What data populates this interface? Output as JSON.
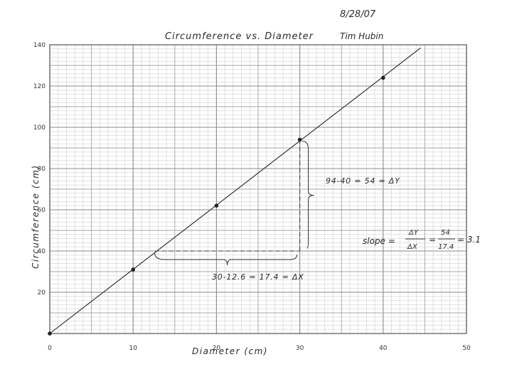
{
  "header": {
    "date": "8/28/07",
    "author": "Tim Hubin"
  },
  "chart_data": {
    "type": "scatter",
    "title": "Circumference vs. Diameter",
    "xlabel": "Diameter (cm)",
    "ylabel": "Circumference (cm)",
    "xlim": [
      0,
      50
    ],
    "ylim": [
      0,
      140
    ],
    "x_ticks": [
      0,
      10,
      20,
      30,
      40,
      50
    ],
    "y_ticks": [
      20,
      40,
      60,
      80,
      100,
      120,
      140
    ],
    "grid": true,
    "series": [
      {
        "x": [
          0,
          10,
          20,
          30,
          40
        ],
        "y": [
          0,
          31,
          62,
          94,
          124
        ]
      }
    ],
    "fit_line": {
      "x": [
        0,
        44.5
      ],
      "y": [
        0,
        138.5
      ]
    },
    "slope_triangle": {
      "x1": 12.6,
      "y1": 40,
      "x2": 30,
      "y2": 94
    },
    "annotations": {
      "delta_y": "94-40 = 54 = ΔY",
      "delta_x": "30-12.6 = 17.4 = ΔX",
      "slope_label": "slope =",
      "slope_frac1_num": "ΔY",
      "slope_frac1_den": "ΔX",
      "slope_eq": "=",
      "slope_frac2_num": "54",
      "slope_frac2_den": "17.4",
      "slope_result": "= 3.1"
    }
  }
}
